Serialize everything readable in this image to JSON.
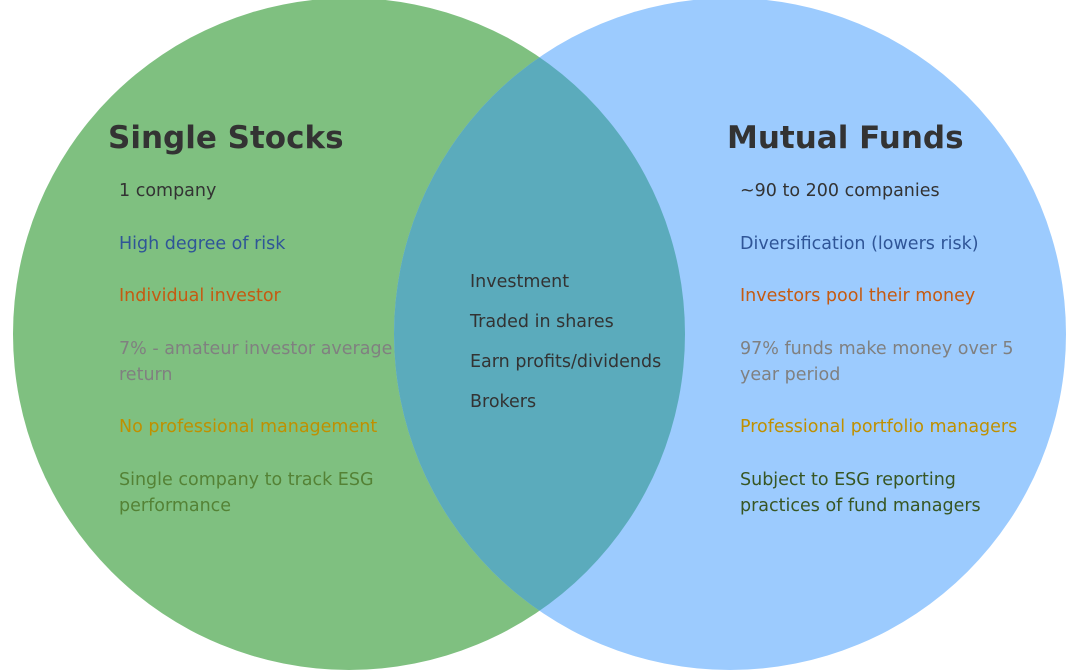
{
  "colors": {
    "left_circle": "#7fc080",
    "right_circle": "#9ccbfe",
    "overlap": "#5babbc",
    "title_text": "#333333",
    "item_colors": [
      "#333333",
      "#2f5597",
      "#c55a11",
      "#808080",
      "#bf9000",
      "#548235"
    ],
    "right_item_colors": [
      "#333333",
      "#2f5597",
      "#c55a11",
      "#808080",
      "#bf9000",
      "#375623"
    ]
  },
  "left": {
    "title": "Single Stocks",
    "items": [
      "1 company",
      "High degree of risk",
      "Individual investor",
      "7% - amateur investor average return",
      "No professional management",
      "Single company to track ESG performance"
    ]
  },
  "right": {
    "title": "Mutual Funds",
    "items": [
      "~90 to 200 companies",
      "Diversification (lowers risk)",
      "Investors pool their money",
      "97% funds make money over 5 year period",
      "Professional portfolio managers",
      "Subject to ESG reporting practices of fund managers"
    ]
  },
  "shared": {
    "items": [
      "Investment",
      "Traded in shares",
      "Earn profits/dividends",
      "Brokers"
    ]
  }
}
